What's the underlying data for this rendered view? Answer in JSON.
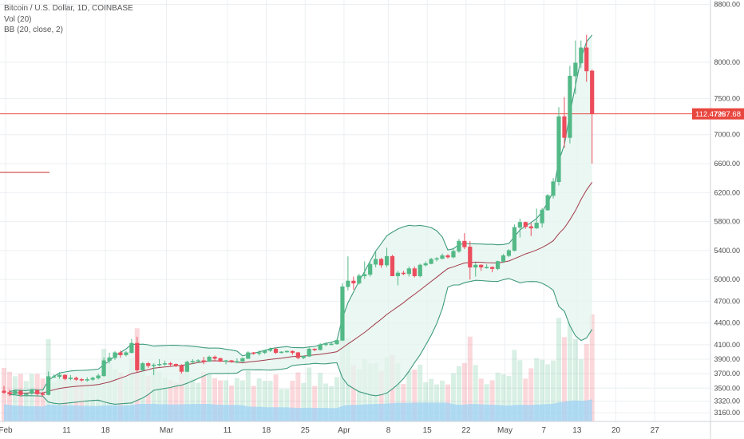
{
  "legend": {
    "symbol": "Bitcoin / U.S. Dollar, 1D, COINBASE",
    "volume": "Vol (20)",
    "bollinger": "BB (20, close, 2)"
  },
  "price_badge": {
    "pct": "112.47%",
    "price": "7287.68"
  },
  "colors": {
    "up": "#53b987",
    "down": "#eb4d5c",
    "bb_line": "#3f9b7e",
    "bb_fill": "#e4f4ee",
    "basis": "#a13a4a",
    "price_line": "#e8473f",
    "volume_area": "#9fd3f4",
    "grid": "#eceff2"
  },
  "chart_data": {
    "type": "candlestick",
    "title": "Bitcoin / U.S. Dollar, 1D, COINBASE",
    "y_axis": {
      "ylim": [
        3040,
        8860
      ],
      "ticks": [
        3160,
        3320,
        3500,
        3700,
        3900,
        4100,
        4400,
        4700,
        5000,
        5400,
        5800,
        6200,
        6600,
        7000,
        7500,
        8000,
        8800
      ],
      "position": "right"
    },
    "x_axis": {
      "ticks": [
        "Feb",
        "11",
        "18",
        "Mar",
        "11",
        "18",
        "25",
        "Apr",
        "8",
        "15",
        "22",
        "May",
        "7",
        "13",
        "20",
        "27"
      ]
    },
    "grid": true,
    "last_price": 7287.68,
    "last_change_pct": "112.47%",
    "candles": [
      {
        "date": "Jan 31",
        "o": 3460,
        "h": 3530,
        "l": 3420,
        "c": 3440
      },
      {
        "date": "Feb 1",
        "o": 3440,
        "h": 3480,
        "l": 3390,
        "c": 3420
      },
      {
        "date": "Feb 2",
        "o": 3420,
        "h": 3470,
        "l": 3400,
        "c": 3460
      },
      {
        "date": "Feb 3",
        "o": 3460,
        "h": 3470,
        "l": 3390,
        "c": 3410
      },
      {
        "date": "Feb 4",
        "o": 3410,
        "h": 3440,
        "l": 3390,
        "c": 3425
      },
      {
        "date": "Feb 5",
        "o": 3425,
        "h": 3490,
        "l": 3410,
        "c": 3470
      },
      {
        "date": "Feb 6",
        "o": 3470,
        "h": 3480,
        "l": 3400,
        "c": 3420
      },
      {
        "date": "Feb 7",
        "o": 3420,
        "h": 3450,
        "l": 3390,
        "c": 3410
      },
      {
        "date": "Feb 8",
        "o": 3410,
        "h": 3730,
        "l": 3400,
        "c": 3660
      },
      {
        "date": "Feb 9",
        "o": 3660,
        "h": 3690,
        "l": 3640,
        "c": 3660
      },
      {
        "date": "Feb 10",
        "o": 3660,
        "h": 3720,
        "l": 3630,
        "c": 3680
      },
      {
        "date": "Feb 11",
        "o": 3680,
        "h": 3690,
        "l": 3610,
        "c": 3630
      },
      {
        "date": "Feb 12",
        "o": 3630,
        "h": 3680,
        "l": 3610,
        "c": 3640
      },
      {
        "date": "Feb 13",
        "o": 3640,
        "h": 3660,
        "l": 3600,
        "c": 3620
      },
      {
        "date": "Feb 14",
        "o": 3620,
        "h": 3640,
        "l": 3590,
        "c": 3610
      },
      {
        "date": "Feb 15",
        "o": 3610,
        "h": 3650,
        "l": 3590,
        "c": 3620
      },
      {
        "date": "Feb 16",
        "o": 3620,
        "h": 3660,
        "l": 3600,
        "c": 3640
      },
      {
        "date": "Feb 17",
        "o": 3640,
        "h": 3700,
        "l": 3620,
        "c": 3670
      },
      {
        "date": "Feb 18",
        "o": 3670,
        "h": 3920,
        "l": 3660,
        "c": 3880
      },
      {
        "date": "Feb 19",
        "o": 3880,
        "h": 3990,
        "l": 3840,
        "c": 3920
      },
      {
        "date": "Feb 20",
        "o": 3920,
        "h": 4010,
        "l": 3890,
        "c": 3990
      },
      {
        "date": "Feb 21",
        "o": 3990,
        "h": 4020,
        "l": 3920,
        "c": 3960
      },
      {
        "date": "Feb 22",
        "o": 3960,
        "h": 4010,
        "l": 3940,
        "c": 3990
      },
      {
        "date": "Feb 23",
        "o": 3990,
        "h": 4180,
        "l": 3980,
        "c": 4120
      },
      {
        "date": "Feb 24",
        "o": 4120,
        "h": 4210,
        "l": 3720,
        "c": 3750
      },
      {
        "date": "Feb 25",
        "o": 3750,
        "h": 3860,
        "l": 3730,
        "c": 3840
      },
      {
        "date": "Feb 26",
        "o": 3840,
        "h": 3860,
        "l": 3780,
        "c": 3810
      },
      {
        "date": "Feb 27",
        "o": 3810,
        "h": 3840,
        "l": 3680,
        "c": 3820
      },
      {
        "date": "Feb 28",
        "o": 3820,
        "h": 3900,
        "l": 3800,
        "c": 3830
      },
      {
        "date": "Mar 1",
        "o": 3830,
        "h": 3880,
        "l": 3810,
        "c": 3840
      },
      {
        "date": "Mar 2",
        "o": 3840,
        "h": 3860,
        "l": 3800,
        "c": 3830
      },
      {
        "date": "Mar 3",
        "o": 3830,
        "h": 3840,
        "l": 3790,
        "c": 3810
      },
      {
        "date": "Mar 4",
        "o": 3810,
        "h": 3830,
        "l": 3700,
        "c": 3730
      },
      {
        "date": "Mar 5",
        "o": 3730,
        "h": 3880,
        "l": 3720,
        "c": 3860
      },
      {
        "date": "Mar 6",
        "o": 3860,
        "h": 3900,
        "l": 3830,
        "c": 3870
      },
      {
        "date": "Mar 7",
        "o": 3870,
        "h": 3900,
        "l": 3850,
        "c": 3880
      },
      {
        "date": "Mar 8",
        "o": 3880,
        "h": 3930,
        "l": 3830,
        "c": 3870
      },
      {
        "date": "Mar 9",
        "o": 3870,
        "h": 3950,
        "l": 3860,
        "c": 3930
      },
      {
        "date": "Mar 10",
        "o": 3930,
        "h": 3950,
        "l": 3880,
        "c": 3910
      },
      {
        "date": "Mar 11",
        "o": 3910,
        "h": 3920,
        "l": 3860,
        "c": 3870
      },
      {
        "date": "Mar 12",
        "o": 3870,
        "h": 3890,
        "l": 3830,
        "c": 3880
      },
      {
        "date": "Mar 13",
        "o": 3880,
        "h": 3890,
        "l": 3850,
        "c": 3870
      },
      {
        "date": "Mar 14",
        "o": 3870,
        "h": 3910,
        "l": 3840,
        "c": 3870
      },
      {
        "date": "Mar 15",
        "o": 3870,
        "h": 3920,
        "l": 3860,
        "c": 3910
      },
      {
        "date": "Mar 16",
        "o": 3910,
        "h": 4010,
        "l": 3900,
        "c": 3990
      },
      {
        "date": "Mar 17",
        "o": 3990,
        "h": 4000,
        "l": 3960,
        "c": 3980
      },
      {
        "date": "Mar 18",
        "o": 3980,
        "h": 4020,
        "l": 3950,
        "c": 3990
      },
      {
        "date": "Mar 19",
        "o": 3990,
        "h": 4030,
        "l": 3970,
        "c": 4020
      },
      {
        "date": "Mar 20",
        "o": 4020,
        "h": 4060,
        "l": 4000,
        "c": 4040
      },
      {
        "date": "Mar 21",
        "o": 4040,
        "h": 4060,
        "l": 3970,
        "c": 3990
      },
      {
        "date": "Mar 22",
        "o": 3990,
        "h": 4010,
        "l": 3980,
        "c": 4000
      },
      {
        "date": "Mar 23",
        "o": 4000,
        "h": 4020,
        "l": 3990,
        "c": 4010
      },
      {
        "date": "Mar 24",
        "o": 4010,
        "h": 4020,
        "l": 3960,
        "c": 3990
      },
      {
        "date": "Mar 25",
        "o": 3990,
        "h": 4000,
        "l": 3900,
        "c": 3920
      },
      {
        "date": "Mar 26",
        "o": 3920,
        "h": 3950,
        "l": 3900,
        "c": 3940
      },
      {
        "date": "Mar 27",
        "o": 3940,
        "h": 4060,
        "l": 3930,
        "c": 4040
      },
      {
        "date": "Mar 28",
        "o": 4040,
        "h": 4050,
        "l": 4010,
        "c": 4030
      },
      {
        "date": "Mar 29",
        "o": 4030,
        "h": 4120,
        "l": 4020,
        "c": 4100
      },
      {
        "date": "Mar 30",
        "o": 4100,
        "h": 4130,
        "l": 4080,
        "c": 4110
      },
      {
        "date": "Mar 31",
        "o": 4110,
        "h": 4130,
        "l": 4090,
        "c": 4110
      },
      {
        "date": "Apr 1",
        "o": 4110,
        "h": 4180,
        "l": 4100,
        "c": 4160
      },
      {
        "date": "Apr 2",
        "o": 4160,
        "h": 4950,
        "l": 4150,
        "c": 4900
      },
      {
        "date": "Apr 3",
        "o": 4900,
        "h": 5320,
        "l": 4850,
        "c": 4980
      },
      {
        "date": "Apr 4",
        "o": 4980,
        "h": 5040,
        "l": 4860,
        "c": 4950
      },
      {
        "date": "Apr 5",
        "o": 4950,
        "h": 5080,
        "l": 4930,
        "c": 5050
      },
      {
        "date": "Apr 6",
        "o": 5050,
        "h": 5250,
        "l": 5010,
        "c": 5070
      },
      {
        "date": "Apr 7",
        "o": 5070,
        "h": 5240,
        "l": 5040,
        "c": 5210
      },
      {
        "date": "Apr 8",
        "o": 5210,
        "h": 5380,
        "l": 5170,
        "c": 5280
      },
      {
        "date": "Apr 9",
        "o": 5280,
        "h": 5300,
        "l": 5160,
        "c": 5200
      },
      {
        "date": "Apr 10",
        "o": 5200,
        "h": 5440,
        "l": 5170,
        "c": 5320
      },
      {
        "date": "Apr 11",
        "o": 5320,
        "h": 5340,
        "l": 5050,
        "c": 5050
      },
      {
        "date": "Apr 12",
        "o": 5050,
        "h": 5120,
        "l": 4920,
        "c": 5090
      },
      {
        "date": "Apr 13",
        "o": 5090,
        "h": 5120,
        "l": 5060,
        "c": 5080
      },
      {
        "date": "Apr 14",
        "o": 5080,
        "h": 5180,
        "l": 5040,
        "c": 5150
      },
      {
        "date": "Apr 15",
        "o": 5150,
        "h": 5180,
        "l": 5030,
        "c": 5050
      },
      {
        "date": "Apr 16",
        "o": 5050,
        "h": 5220,
        "l": 5030,
        "c": 5200
      },
      {
        "date": "Apr 17",
        "o": 5200,
        "h": 5250,
        "l": 5180,
        "c": 5220
      },
      {
        "date": "Apr 18",
        "o": 5220,
        "h": 5300,
        "l": 5210,
        "c": 5280
      },
      {
        "date": "Apr 19",
        "o": 5280,
        "h": 5310,
        "l": 5250,
        "c": 5290
      },
      {
        "date": "Apr 20",
        "o": 5290,
        "h": 5360,
        "l": 5280,
        "c": 5330
      },
      {
        "date": "Apr 21",
        "o": 5330,
        "h": 5350,
        "l": 5290,
        "c": 5310
      },
      {
        "date": "Apr 22",
        "o": 5310,
        "h": 5420,
        "l": 5290,
        "c": 5390
      },
      {
        "date": "Apr 23",
        "o": 5390,
        "h": 5560,
        "l": 5370,
        "c": 5530
      },
      {
        "date": "Apr 24",
        "o": 5530,
        "h": 5640,
        "l": 5420,
        "c": 5450
      },
      {
        "date": "Apr 25",
        "o": 5450,
        "h": 5530,
        "l": 5000,
        "c": 5170
      },
      {
        "date": "Apr 26",
        "o": 5170,
        "h": 5230,
        "l": 5040,
        "c": 5200
      },
      {
        "date": "Apr 27",
        "o": 5200,
        "h": 5210,
        "l": 5120,
        "c": 5170
      },
      {
        "date": "Apr 28",
        "o": 5170,
        "h": 5210,
        "l": 5150,
        "c": 5170
      },
      {
        "date": "Apr 29",
        "o": 5170,
        "h": 5180,
        "l": 5100,
        "c": 5150
      },
      {
        "date": "Apr 30",
        "o": 5150,
        "h": 5260,
        "l": 5130,
        "c": 5250
      },
      {
        "date": "May 1",
        "o": 5250,
        "h": 5350,
        "l": 5230,
        "c": 5330
      },
      {
        "date": "May 2",
        "o": 5330,
        "h": 5420,
        "l": 5310,
        "c": 5400
      },
      {
        "date": "May 3",
        "o": 5400,
        "h": 5760,
        "l": 5390,
        "c": 5720
      },
      {
        "date": "May 4",
        "o": 5720,
        "h": 5840,
        "l": 5580,
        "c": 5790
      },
      {
        "date": "May 5",
        "o": 5790,
        "h": 5800,
        "l": 5700,
        "c": 5730
      },
      {
        "date": "May 6",
        "o": 5730,
        "h": 5780,
        "l": 5600,
        "c": 5710
      },
      {
        "date": "May 7",
        "o": 5710,
        "h": 5980,
        "l": 5700,
        "c": 5780
      },
      {
        "date": "May 8",
        "o": 5780,
        "h": 5990,
        "l": 5720,
        "c": 5960
      },
      {
        "date": "May 9",
        "o": 5960,
        "h": 6180,
        "l": 5950,
        "c": 6160
      },
      {
        "date": "May 10",
        "o": 6160,
        "h": 6400,
        "l": 6120,
        "c": 6350
      },
      {
        "date": "May 11",
        "o": 6350,
        "h": 7380,
        "l": 6300,
        "c": 7250
      },
      {
        "date": "May 12",
        "o": 7250,
        "h": 7520,
        "l": 6820,
        "c": 6960
      },
      {
        "date": "May 13",
        "o": 6960,
        "h": 7950,
        "l": 6880,
        "c": 7810
      },
      {
        "date": "May 14",
        "o": 7810,
        "h": 8300,
        "l": 7560,
        "c": 7990
      },
      {
        "date": "May 15",
        "o": 7990,
        "h": 8300,
        "l": 7920,
        "c": 8200
      },
      {
        "date": "May 16",
        "o": 8200,
        "h": 8380,
        "l": 7730,
        "c": 7880
      },
      {
        "date": "May 17",
        "o": 7880,
        "h": 7900,
        "l": 6600,
        "c": 7287.68
      }
    ]
  }
}
